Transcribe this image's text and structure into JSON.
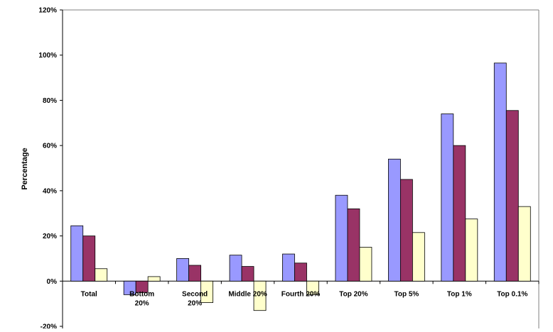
{
  "chart_data": {
    "type": "bar",
    "title": "",
    "xlabel": "",
    "ylabel": "Percentage",
    "ylim": [
      -20,
      120
    ],
    "yticks": [
      -20,
      0,
      20,
      40,
      60,
      80,
      100,
      120
    ],
    "ytick_labels": [
      "-20%",
      "0%",
      "20%",
      "40%",
      "60%",
      "80%",
      "100%",
      "120%"
    ],
    "categories": [
      "Total",
      "Bottom 20%",
      "Second 20%",
      "Middle 20%",
      "Fourth 20%",
      "Top 20%",
      "Top 5%",
      "Top 1%",
      "Top 0.1%"
    ],
    "category_label_lines": [
      [
        "Total"
      ],
      [
        "Bottom",
        "20%"
      ],
      [
        "Second",
        "20%"
      ],
      [
        "Middle 20%"
      ],
      [
        "Fourth 20%"
      ],
      [
        "Top 20%"
      ],
      [
        "Top 5%"
      ],
      [
        "Top 1%"
      ],
      [
        "Top 0.1%"
      ]
    ],
    "series": [
      {
        "color": "#9999ff",
        "values": [
          24.5,
          -6,
          10,
          11.5,
          12,
          38,
          54,
          74,
          96.5
        ]
      },
      {
        "color": "#993366",
        "values": [
          20,
          -5,
          7,
          6.5,
          8,
          32,
          45,
          60,
          75.5
        ]
      },
      {
        "color": "#ffffcc",
        "values": [
          5.5,
          2,
          -9.5,
          -13,
          -6,
          15,
          21.5,
          27.5,
          33
        ]
      }
    ],
    "grid": false,
    "legend": "none"
  }
}
